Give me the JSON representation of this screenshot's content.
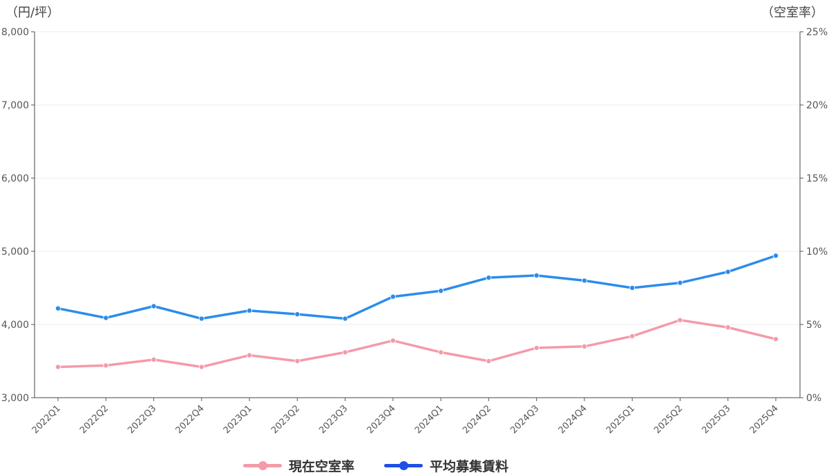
{
  "chart_data": {
    "type": "line",
    "categories": [
      "2022Q1",
      "2022Q2",
      "2022Q3",
      "2022Q4",
      "2023Q1",
      "2023Q2",
      "2023Q3",
      "2023Q4",
      "2024Q1",
      "2024Q2",
      "2024Q3",
      "2024Q4",
      "2025Q1",
      "2025Q2",
      "2025Q3",
      "2025Q4"
    ],
    "left_axis": {
      "unit_label": "（円/坪）",
      "ylim": [
        3000,
        8000
      ],
      "ticks": [
        "3,000",
        "4,000",
        "5,000",
        "6,000",
        "7,000",
        "8,000"
      ]
    },
    "right_axis": {
      "unit_label": "（空室率）",
      "ylim": [
        0,
        25
      ],
      "ticks": [
        "0%",
        "5%",
        "10%",
        "15%",
        "20%",
        "25%"
      ]
    },
    "series": [
      {
        "name": "現在空室率",
        "axis": "right",
        "color": "#f59aa8",
        "values": [
          2.1,
          2.2,
          2.6,
          2.1,
          2.9,
          2.5,
          3.1,
          3.9,
          3.1,
          2.5,
          3.4,
          3.5,
          4.2,
          5.3,
          4.8,
          4.0
        ]
      },
      {
        "name": "平均募集賃料",
        "axis": "left",
        "color": "#2b8cec",
        "values": [
          4220,
          4090,
          4250,
          4080,
          4190,
          4140,
          4080,
          4380,
          4460,
          4640,
          4670,
          4600,
          4500,
          4570,
          4720,
          4940
        ]
      }
    ],
    "grid": true,
    "legend_position": "bottom-center"
  },
  "legend": {
    "items": [
      {
        "label": "現在空室率",
        "color": "#f59aa8"
      },
      {
        "label": "平均募集賃料",
        "color": "#1f4fe6"
      }
    ]
  }
}
